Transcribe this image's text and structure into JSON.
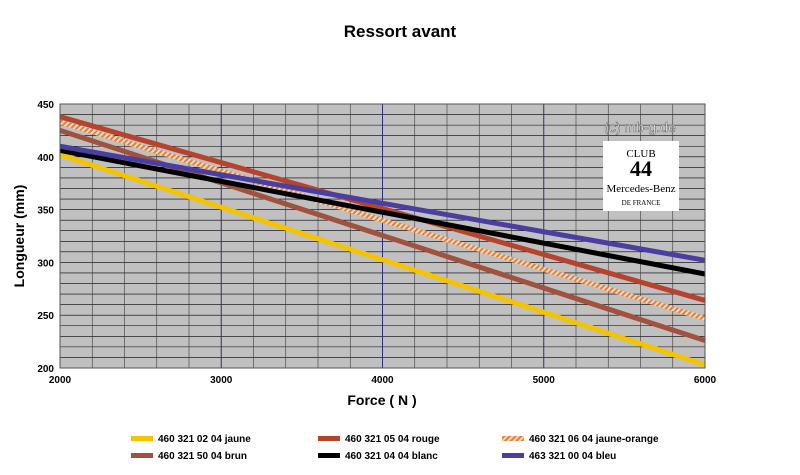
{
  "chart_data": {
    "type": "line",
    "title": "Ressort avant",
    "xlabel": "Force ( N )",
    "ylabel": "Longueur (mm)",
    "xlim": [
      2000,
      6000
    ],
    "ylim": [
      200,
      450
    ],
    "x_ticks": [
      "2000",
      "3000",
      "4000",
      "5000",
      "6000"
    ],
    "y_ticks": [
      "200",
      "250",
      "300",
      "350",
      "400",
      "450"
    ],
    "grid": true,
    "legend_position": "bottom",
    "plot_background": "#c0c0c0",
    "series": [
      {
        "name": "460 321 02 04  jaune",
        "color": "#f5c400",
        "style": "solid",
        "x": [
          2000,
          6000
        ],
        "y": [
          402,
          203
        ]
      },
      {
        "name": "460 321 05 04  rouge",
        "color": "#b8432c",
        "style": "solid",
        "x": [
          2000,
          6000
        ],
        "y": [
          438,
          264
        ]
      },
      {
        "name": "460 321 50 04  brun",
        "color": "#a0523e",
        "style": "solid",
        "x": [
          2000,
          6000
        ],
        "y": [
          425,
          226
        ]
      },
      {
        "name": "460 321 04 04  blanc",
        "color": "#000000",
        "style": "solid",
        "x": [
          2000,
          6000
        ],
        "y": [
          406,
          289
        ]
      },
      {
        "name": "460 321 06 04  jaune-orange",
        "color": "#e8956a",
        "style": "striped",
        "x": [
          2000,
          6000
        ],
        "y": [
          433,
          247
        ]
      },
      {
        "name": "463 321 00 04  bleu",
        "color": "#4a3fa0",
        "style": "solid",
        "x": [
          2000,
          6000
        ],
        "y": [
          410,
          302
        ]
      }
    ]
  },
  "watermark": "(c) mb-g.de",
  "logo": {
    "line1": "CLUB",
    "line2": "Mercedes-Benz",
    "line3": "DE FRANCE"
  }
}
